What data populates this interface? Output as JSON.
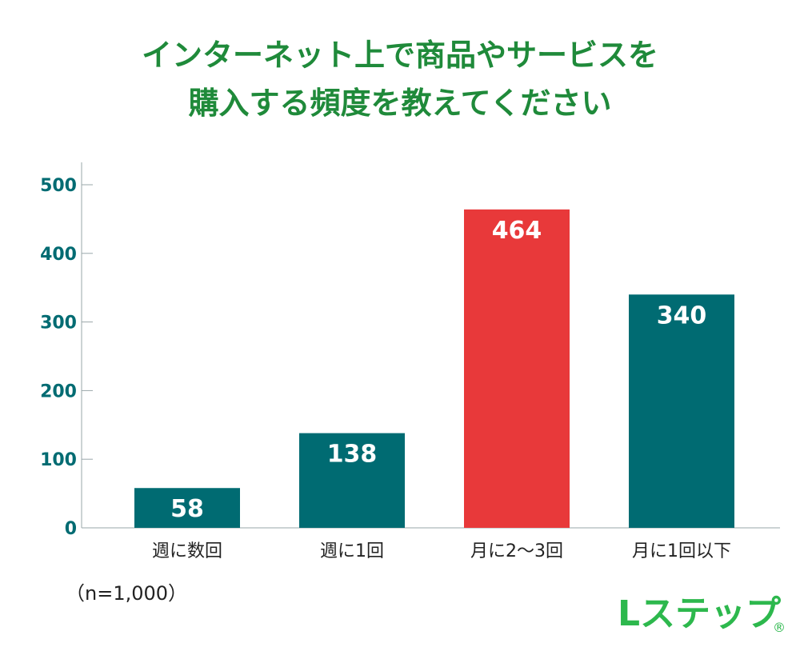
{
  "title": {
    "line1": "インターネット上で商品やサービスを",
    "line2": "購入する頻度を教えてください"
  },
  "note": "（n=1,000）",
  "logo": {
    "text": "Lステップ",
    "mark": "®"
  },
  "colors": {
    "title": "#1f8a3a",
    "bar": "#006b72",
    "highlight": "#e8393a",
    "axis_text": "#006b72"
  },
  "chart_data": {
    "type": "bar",
    "categories": [
      "週に数回",
      "週に1回",
      "月に2〜3回",
      "月に1回以下"
    ],
    "values": [
      58,
      138,
      464,
      340
    ],
    "highlight_index": 2,
    "yticks": [
      0,
      100,
      200,
      300,
      400,
      500
    ],
    "ylim": [
      0,
      530
    ],
    "grid": false,
    "legend": "none"
  }
}
